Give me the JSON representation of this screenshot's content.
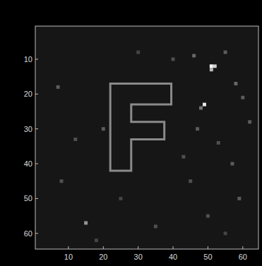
{
  "chart_data": {
    "type": "heatmap",
    "xlim": [
      0.5,
      64.5
    ],
    "ylim": [
      0.5,
      64.5
    ],
    "xticks": [
      10,
      20,
      30,
      40,
      50,
      60
    ],
    "yticks": [
      10,
      20,
      30,
      40,
      50,
      60
    ],
    "clim": [
      0,
      1
    ],
    "cells": [
      [
        51,
        12,
        1.0
      ],
      [
        52,
        12,
        0.8
      ],
      [
        51,
        13,
        0.7
      ],
      [
        49,
        23,
        0.9
      ],
      [
        48,
        24,
        0.4
      ],
      [
        15,
        57,
        0.55
      ],
      [
        46,
        9,
        0.35
      ],
      [
        55,
        8,
        0.3
      ],
      [
        58,
        17,
        0.35
      ],
      [
        60,
        21,
        0.3
      ],
      [
        47,
        30,
        0.3
      ],
      [
        53,
        34,
        0.25
      ],
      [
        57,
        40,
        0.3
      ],
      [
        45,
        45,
        0.25
      ],
      [
        59,
        50,
        0.3
      ],
      [
        7,
        18,
        0.3
      ],
      [
        12,
        33,
        0.25
      ],
      [
        20,
        30,
        0.3
      ],
      [
        35,
        58,
        0.25
      ],
      [
        25,
        50,
        0.2
      ],
      [
        40,
        10,
        0.25
      ],
      [
        62,
        28,
        0.3
      ],
      [
        50,
        55,
        0.25
      ],
      [
        30,
        8,
        0.2
      ],
      [
        8,
        45,
        0.25
      ],
      [
        18,
        62,
        0.2
      ],
      [
        43,
        38,
        0.25
      ],
      [
        55,
        60,
        0.2
      ]
    ],
    "overlay": {
      "x": [
        22,
        39.5,
        39.5,
        28,
        28,
        37.5,
        37.5,
        28,
        28,
        22
      ],
      "y": [
        17,
        17,
        23,
        23,
        28,
        28,
        33,
        33,
        42,
        42
      ]
    }
  }
}
